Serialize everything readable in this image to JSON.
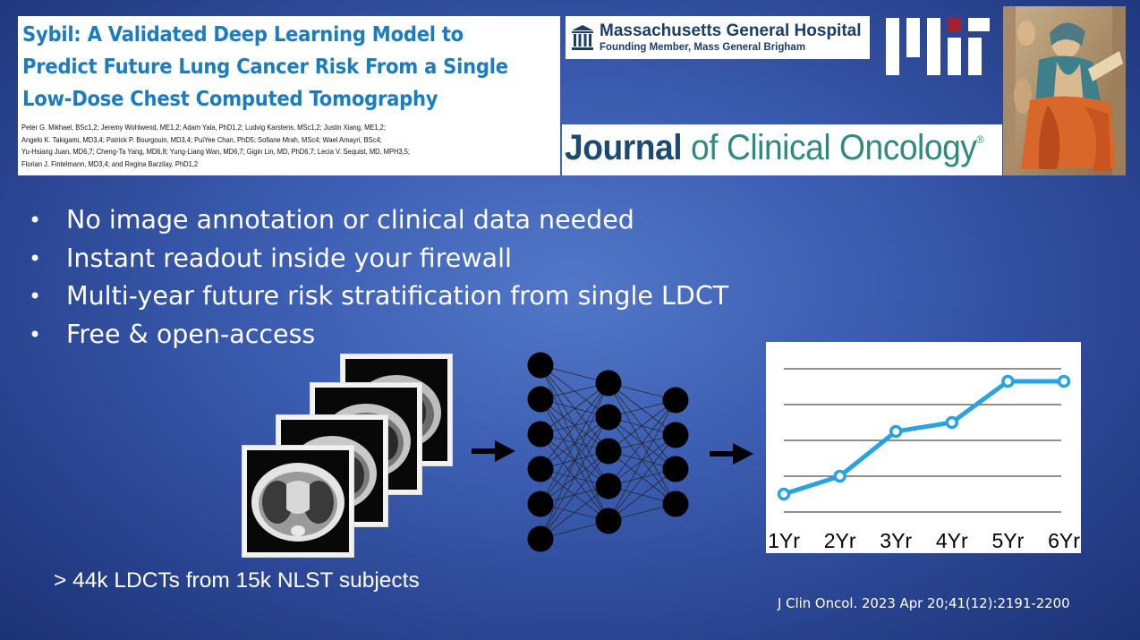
{
  "paper": {
    "title": "Sybil: A Validated Deep Learning Model to\nPredict Future Lung Cancer Risk From a Single\nLow-Dose Chest Computed Tomography",
    "authors": "Peter G. Mikhael, BSc1,2; Jeremy Wohlwend, ME1,2; Adam Yala, PhD1,2; Ludvig Karstens, MSc1,2; Justin Xiang, ME1,2;\nAngelo K. Takigami, MD3,4; Patrick P. Bourgouin, MD3,4; PuiYee Chan, PhD5; Sofiane Mrah, MSc4; Wael Amayri, BSc4;\nYu-Hsiang Juan, MD6,7; Cheng-Ta Yang, MD6,8; Yung-Liang Wan, MD6,7; Gigin Lin, MD, PhD6,7; Lecia V. Sequist, MD, MPH3,5;\nFlorian J. Fintelmann, MD3,4; and Regina Barzilay, PhD1,2"
  },
  "logos": {
    "mgh_name": "Massachusetts General Hospital",
    "mgh_sub": "Founding Member, Mass General Brigham",
    "mgh_color": "#1b3d6e",
    "mit_icon": "mit-logo",
    "jco_bold": "Journal",
    "jco_rest": " of Clinical Oncology",
    "jco_mark": "®",
    "jco_color": "#2e8a7c"
  },
  "bullets": [
    "No image annotation or clinical data needed",
    "Instant readout inside your firewall",
    "Multi-year future risk stratification from single LDCT",
    "Free & open-access"
  ],
  "bullet_glyph": "•",
  "caption": "> 44k LDCTs from 15k NLST subjects",
  "citation": "J Clin Oncol. 2023 Apr 20;41(12):2191-2200",
  "colors": {
    "background": "#3d5fb3",
    "line": "#29a3e0",
    "title_blue": "#1c7cc0"
  },
  "chart_data": {
    "type": "line",
    "categories": [
      "1Yr",
      "2Yr",
      "3Yr",
      "4Yr",
      "5Yr",
      "6Yr"
    ],
    "values": [
      0.5,
      1.0,
      2.25,
      2.5,
      3.65,
      3.65
    ],
    "ylim": [
      0,
      4
    ],
    "grid": true,
    "title": "",
    "xlabel": "",
    "ylabel": ""
  }
}
